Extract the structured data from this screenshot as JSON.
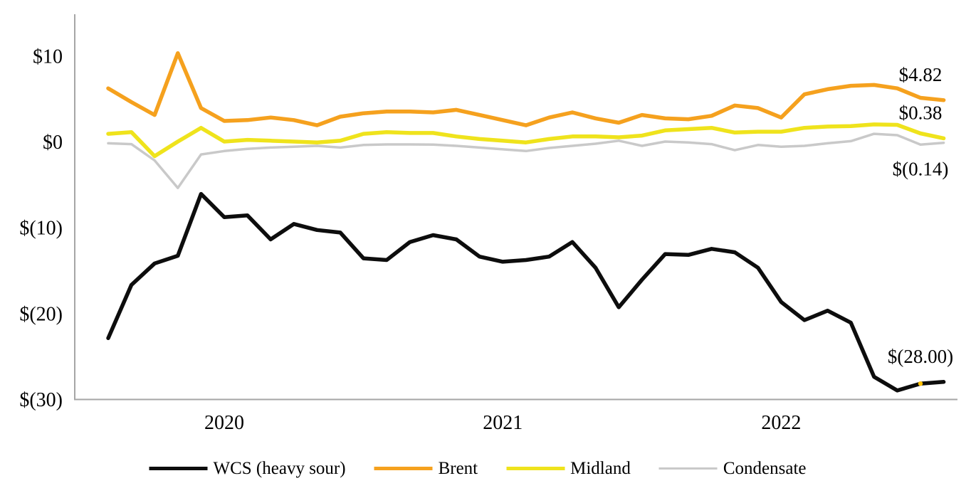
{
  "background": "#FFFFFF",
  "text_color": "#000000",
  "axis": {
    "color": "#A6A6A6"
  },
  "chart_data": {
    "type": "line",
    "title": "",
    "xlabel": "",
    "ylabel": "",
    "grid": false,
    "legend_position": "bottom",
    "ylim": [
      -30,
      10
    ],
    "y_ticks": [
      {
        "value": 10,
        "label": "$10"
      },
      {
        "value": 0,
        "label": "$0"
      },
      {
        "value": -10,
        "label": "$(10)"
      },
      {
        "value": -20,
        "label": "$(20)"
      },
      {
        "value": -30,
        "label": "$(30)"
      }
    ],
    "x_months": [
      "2019-08",
      "2019-09",
      "2019-10",
      "2019-11",
      "2019-12",
      "2020-01",
      "2020-02",
      "2020-03",
      "2020-04",
      "2020-05",
      "2020-06",
      "2020-07",
      "2020-08",
      "2020-09",
      "2020-10",
      "2020-11",
      "2020-12",
      "2021-01",
      "2021-02",
      "2021-03",
      "2021-04",
      "2021-05",
      "2021-06",
      "2021-07",
      "2021-08",
      "2021-09",
      "2021-10",
      "2021-11",
      "2021-12",
      "2022-01",
      "2022-02",
      "2022-03",
      "2022-04",
      "2022-05",
      "2022-06",
      "2022-07",
      "2022-08"
    ],
    "x_year_labels": [
      {
        "label": "2020",
        "index": 5
      },
      {
        "label": "2021",
        "index": 17
      },
      {
        "label": "2022",
        "index": 29
      }
    ],
    "series": [
      {
        "name": "WCS (heavy sour)",
        "color": "#0D0D0D",
        "stroke_width": 5.5,
        "end_label": "$(28.00)",
        "end_label_side": "above",
        "values": [
          -22.9,
          -16.7,
          -14.2,
          -13.3,
          -6.1,
          -8.8,
          -8.6,
          -11.4,
          -9.6,
          -10.3,
          -10.6,
          -13.6,
          -13.8,
          -11.7,
          -10.9,
          -11.4,
          -13.4,
          -14.0,
          -13.8,
          -13.4,
          -11.7,
          -14.7,
          -19.3,
          -16.1,
          -13.1,
          -13.2,
          -12.5,
          -12.9,
          -14.7,
          -18.7,
          -20.8,
          -19.7,
          -21.1,
          -27.4,
          -29.0,
          -28.2,
          -28.0
        ]
      },
      {
        "name": "Brent",
        "color": "#F5A11E",
        "stroke_width": 5.5,
        "end_label": "$4.82",
        "end_label_side": "above",
        "values": [
          6.2,
          4.6,
          3.1,
          10.3,
          3.9,
          2.4,
          2.5,
          2.8,
          2.5,
          1.9,
          2.9,
          3.3,
          3.5,
          3.5,
          3.4,
          3.7,
          3.1,
          2.5,
          1.9,
          2.8,
          3.4,
          2.7,
          2.2,
          3.1,
          2.7,
          2.6,
          3.0,
          4.2,
          3.9,
          2.8,
          5.5,
          6.1,
          6.5,
          6.6,
          6.2,
          5.1,
          4.82
        ]
      },
      {
        "name": "Midland",
        "color": "#EFE31C",
        "stroke_width": 5.5,
        "end_label": "$0.38",
        "end_label_side": "above",
        "values": [
          0.9,
          1.1,
          -1.7,
          0.0,
          1.6,
          0.0,
          0.2,
          0.1,
          0.0,
          -0.1,
          0.1,
          0.9,
          1.1,
          1.0,
          1.0,
          0.6,
          0.3,
          0.1,
          -0.1,
          0.3,
          0.6,
          0.6,
          0.5,
          0.7,
          1.3,
          1.45,
          1.6,
          1.05,
          1.15,
          1.15,
          1.6,
          1.75,
          1.8,
          2.0,
          1.95,
          0.95,
          0.38
        ]
      },
      {
        "name": "Condensate",
        "color": "#C9C9C9",
        "stroke_width": 3.5,
        "end_label": "$(0.14)",
        "end_label_side": "below",
        "values": [
          -0.2,
          -0.3,
          -2.2,
          -5.4,
          -1.5,
          -1.1,
          -0.85,
          -0.7,
          -0.6,
          -0.5,
          -0.7,
          -0.4,
          -0.33,
          -0.33,
          -0.36,
          -0.5,
          -0.7,
          -0.9,
          -1.1,
          -0.75,
          -0.5,
          -0.25,
          0.1,
          -0.5,
          0.0,
          -0.1,
          -0.3,
          -1.0,
          -0.4,
          -0.6,
          -0.5,
          -0.2,
          0.05,
          0.9,
          0.75,
          -0.35,
          -0.14
        ]
      }
    ],
    "point_marker": {
      "series_index": 0,
      "month_index": 35,
      "color": "#FFC000"
    }
  }
}
